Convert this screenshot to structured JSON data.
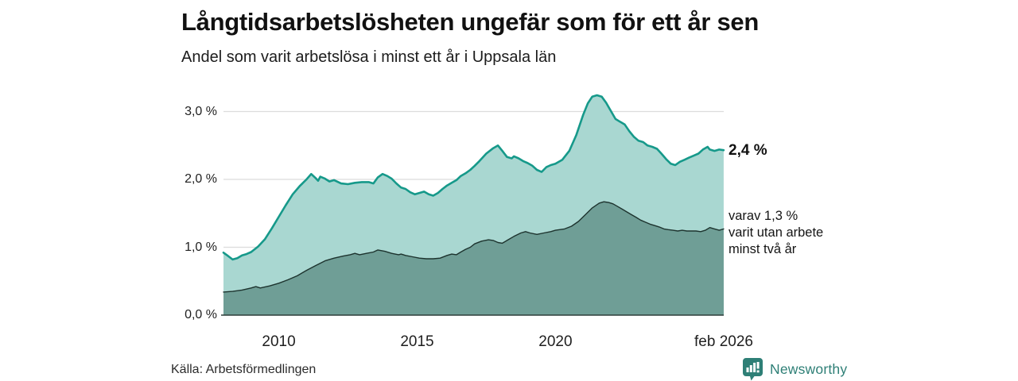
{
  "header": {
    "title": "Långtidsarbetslösheten ungefär som för ett år sen",
    "subtitle": "Andel som varit arbetslösa i minst ett år i Uppsala län"
  },
  "annotations": {
    "end_value_total": "2,4 %",
    "series_note_line1": "varav 1,3 %",
    "series_note_line2": "varit utan arbete",
    "series_note_line3": "minst två år"
  },
  "footer": {
    "source": "Källa: Arbetsförmedlingen",
    "brand": "Newsworthy"
  },
  "chart_data": {
    "type": "area",
    "title": "Långtidsarbetslösheten ungefär som för ett år sen",
    "subtitle": "Andel som varit arbetslösa i minst ett år i Uppsala län",
    "xlabel": "",
    "ylabel": "",
    "x_range": [
      2008.0,
      2026.083
    ],
    "ylim": [
      0,
      3.35
    ],
    "grid": true,
    "legend": "none",
    "yticks": {
      "values": [
        0,
        1,
        2,
        3
      ],
      "labels": [
        "0,0 %",
        "1,0 %",
        "2,0 %",
        "3,0 %"
      ]
    },
    "xticks": [
      {
        "x": 2010,
        "label": "2010"
      },
      {
        "x": 2015,
        "label": "2015"
      },
      {
        "x": 2020,
        "label": "2020"
      },
      {
        "x": 2026.083,
        "label": "feb 2026"
      }
    ],
    "colors": {
      "grid": "#dcdcdc",
      "axis_baseline": "#2e3f3a",
      "total_fill": "#a9d7d1",
      "total_stroke": "#16998a",
      "two_year_fill": "#6f9e96",
      "two_year_stroke": "#1d332e",
      "brand_teal": "#2e7f76"
    },
    "series": [
      {
        "id": "total-at-least-one-year",
        "end_value": 2.4,
        "end_label": "2,4 %",
        "fill": "#a9d7d1",
        "stroke": "#16998a",
        "stroke_width": 2.6,
        "points": [
          [
            2008.0,
            0.92
          ],
          [
            2008.17,
            0.87
          ],
          [
            2008.33,
            0.82
          ],
          [
            2008.5,
            0.84
          ],
          [
            2008.67,
            0.88
          ],
          [
            2008.83,
            0.9
          ],
          [
            2009.0,
            0.93
          ],
          [
            2009.25,
            1.01
          ],
          [
            2009.5,
            1.12
          ],
          [
            2009.75,
            1.28
          ],
          [
            2010.0,
            1.45
          ],
          [
            2010.25,
            1.62
          ],
          [
            2010.5,
            1.78
          ],
          [
            2010.75,
            1.9
          ],
          [
            2011.0,
            2.0
          ],
          [
            2011.17,
            2.08
          ],
          [
            2011.33,
            2.02
          ],
          [
            2011.42,
            1.98
          ],
          [
            2011.5,
            2.04
          ],
          [
            2011.67,
            2.01
          ],
          [
            2011.83,
            1.97
          ],
          [
            2012.0,
            1.99
          ],
          [
            2012.25,
            1.94
          ],
          [
            2012.5,
            1.93
          ],
          [
            2012.75,
            1.95
          ],
          [
            2013.0,
            1.96
          ],
          [
            2013.25,
            1.96
          ],
          [
            2013.42,
            1.94
          ],
          [
            2013.58,
            2.03
          ],
          [
            2013.75,
            2.08
          ],
          [
            2013.92,
            2.05
          ],
          [
            2014.08,
            2.01
          ],
          [
            2014.25,
            1.94
          ],
          [
            2014.42,
            1.88
          ],
          [
            2014.58,
            1.86
          ],
          [
            2014.75,
            1.81
          ],
          [
            2014.92,
            1.78
          ],
          [
            2015.08,
            1.8
          ],
          [
            2015.25,
            1.82
          ],
          [
            2015.42,
            1.78
          ],
          [
            2015.58,
            1.76
          ],
          [
            2015.75,
            1.8
          ],
          [
            2015.92,
            1.86
          ],
          [
            2016.08,
            1.91
          ],
          [
            2016.25,
            1.95
          ],
          [
            2016.42,
            1.99
          ],
          [
            2016.58,
            2.05
          ],
          [
            2016.75,
            2.09
          ],
          [
            2016.92,
            2.14
          ],
          [
            2017.08,
            2.2
          ],
          [
            2017.25,
            2.27
          ],
          [
            2017.5,
            2.38
          ],
          [
            2017.75,
            2.46
          ],
          [
            2017.92,
            2.5
          ],
          [
            2018.08,
            2.42
          ],
          [
            2018.25,
            2.33
          ],
          [
            2018.42,
            2.31
          ],
          [
            2018.5,
            2.34
          ],
          [
            2018.67,
            2.31
          ],
          [
            2018.83,
            2.27
          ],
          [
            2019.0,
            2.24
          ],
          [
            2019.17,
            2.2
          ],
          [
            2019.33,
            2.14
          ],
          [
            2019.5,
            2.11
          ],
          [
            2019.67,
            2.18
          ],
          [
            2019.83,
            2.21
          ],
          [
            2020.0,
            2.23
          ],
          [
            2020.25,
            2.29
          ],
          [
            2020.5,
            2.42
          ],
          [
            2020.75,
            2.65
          ],
          [
            2021.0,
            2.95
          ],
          [
            2021.17,
            3.12
          ],
          [
            2021.33,
            3.22
          ],
          [
            2021.5,
            3.24
          ],
          [
            2021.67,
            3.22
          ],
          [
            2021.83,
            3.13
          ],
          [
            2022.0,
            3.01
          ],
          [
            2022.17,
            2.89
          ],
          [
            2022.33,
            2.85
          ],
          [
            2022.5,
            2.81
          ],
          [
            2022.67,
            2.71
          ],
          [
            2022.83,
            2.63
          ],
          [
            2023.0,
            2.57
          ],
          [
            2023.17,
            2.55
          ],
          [
            2023.33,
            2.5
          ],
          [
            2023.5,
            2.48
          ],
          [
            2023.67,
            2.45
          ],
          [
            2023.83,
            2.38
          ],
          [
            2024.0,
            2.3
          ],
          [
            2024.17,
            2.23
          ],
          [
            2024.33,
            2.21
          ],
          [
            2024.5,
            2.26
          ],
          [
            2024.67,
            2.29
          ],
          [
            2024.83,
            2.32
          ],
          [
            2025.0,
            2.35
          ],
          [
            2025.17,
            2.38
          ],
          [
            2025.33,
            2.44
          ],
          [
            2025.5,
            2.48
          ],
          [
            2025.58,
            2.44
          ],
          [
            2025.75,
            2.42
          ],
          [
            2025.92,
            2.44
          ],
          [
            2026.08,
            2.43
          ]
        ]
      },
      {
        "id": "two-years-or-more",
        "end_value": 1.3,
        "end_label": "varav 1,3 % varit utan arbete minst två år",
        "fill": "#6f9e96",
        "stroke": "#1d332e",
        "stroke_width": 1.4,
        "points": [
          [
            2008.0,
            0.34
          ],
          [
            2008.33,
            0.35
          ],
          [
            2008.67,
            0.37
          ],
          [
            2009.0,
            0.4
          ],
          [
            2009.17,
            0.42
          ],
          [
            2009.33,
            0.4
          ],
          [
            2009.67,
            0.43
          ],
          [
            2010.0,
            0.47
          ],
          [
            2010.33,
            0.52
          ],
          [
            2010.67,
            0.58
          ],
          [
            2011.0,
            0.66
          ],
          [
            2011.33,
            0.73
          ],
          [
            2011.67,
            0.8
          ],
          [
            2012.0,
            0.84
          ],
          [
            2012.33,
            0.87
          ],
          [
            2012.58,
            0.89
          ],
          [
            2012.75,
            0.91
          ],
          [
            2012.92,
            0.89
          ],
          [
            2013.17,
            0.91
          ],
          [
            2013.42,
            0.93
          ],
          [
            2013.58,
            0.96
          ],
          [
            2013.83,
            0.94
          ],
          [
            2014.08,
            0.91
          ],
          [
            2014.33,
            0.89
          ],
          [
            2014.42,
            0.9
          ],
          [
            2014.58,
            0.88
          ],
          [
            2014.83,
            0.86
          ],
          [
            2015.08,
            0.84
          ],
          [
            2015.33,
            0.83
          ],
          [
            2015.58,
            0.83
          ],
          [
            2015.83,
            0.84
          ],
          [
            2016.08,
            0.88
          ],
          [
            2016.25,
            0.9
          ],
          [
            2016.42,
            0.89
          ],
          [
            2016.58,
            0.93
          ],
          [
            2016.75,
            0.97
          ],
          [
            2016.92,
            1.0
          ],
          [
            2017.08,
            1.05
          ],
          [
            2017.33,
            1.09
          ],
          [
            2017.58,
            1.11
          ],
          [
            2017.75,
            1.1
          ],
          [
            2017.92,
            1.07
          ],
          [
            2018.08,
            1.06
          ],
          [
            2018.25,
            1.1
          ],
          [
            2018.5,
            1.16
          ],
          [
            2018.75,
            1.21
          ],
          [
            2018.92,
            1.23
          ],
          [
            2019.08,
            1.21
          ],
          [
            2019.33,
            1.19
          ],
          [
            2019.58,
            1.21
          ],
          [
            2019.83,
            1.23
          ],
          [
            2020.0,
            1.25
          ],
          [
            2020.33,
            1.27
          ],
          [
            2020.58,
            1.31
          ],
          [
            2020.83,
            1.38
          ],
          [
            2021.08,
            1.48
          ],
          [
            2021.33,
            1.58
          ],
          [
            2021.58,
            1.65
          ],
          [
            2021.75,
            1.67
          ],
          [
            2021.92,
            1.66
          ],
          [
            2022.08,
            1.64
          ],
          [
            2022.25,
            1.6
          ],
          [
            2022.42,
            1.56
          ],
          [
            2022.58,
            1.52
          ],
          [
            2022.75,
            1.48
          ],
          [
            2022.92,
            1.44
          ],
          [
            2023.08,
            1.4
          ],
          [
            2023.25,
            1.37
          ],
          [
            2023.42,
            1.34
          ],
          [
            2023.58,
            1.32
          ],
          [
            2023.75,
            1.3
          ],
          [
            2023.92,
            1.27
          ],
          [
            2024.08,
            1.26
          ],
          [
            2024.25,
            1.25
          ],
          [
            2024.42,
            1.24
          ],
          [
            2024.58,
            1.25
          ],
          [
            2024.75,
            1.24
          ],
          [
            2024.92,
            1.24
          ],
          [
            2025.08,
            1.24
          ],
          [
            2025.25,
            1.23
          ],
          [
            2025.42,
            1.25
          ],
          [
            2025.58,
            1.29
          ],
          [
            2025.75,
            1.27
          ],
          [
            2025.92,
            1.25
          ],
          [
            2026.08,
            1.27
          ]
        ]
      }
    ]
  }
}
